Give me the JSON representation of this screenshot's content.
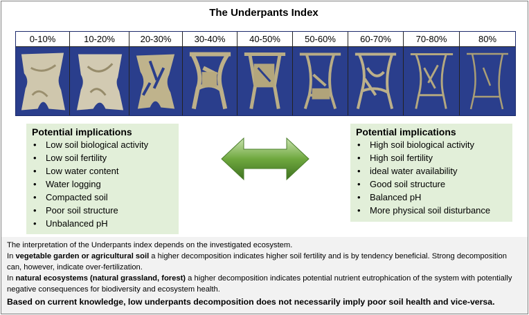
{
  "title": "The Underpants Index",
  "stages": [
    "0-10%",
    "10-20%",
    "20-30%",
    "30-40%",
    "40-50%",
    "50-60%",
    "60-70%",
    "70-80%",
    "80%"
  ],
  "left_box": {
    "heading": "Potential implications",
    "items": [
      "Low soil biological activity",
      "Low soil fertility",
      "Low water content",
      "Water logging",
      "Compacted soil",
      "Poor soil structure",
      "Unbalanced pH"
    ]
  },
  "right_box": {
    "heading": "Potential implications",
    "items": [
      "High soil biological activity",
      "High soil fertility",
      "ideal water availability",
      "Good soil structure",
      "Balanced pH",
      "More physical soil disturbance"
    ]
  },
  "info": {
    "line1": "The interpretation of the Underpants index depends on the investigated ecosystem.",
    "line2_pre": "In ",
    "line2_bold": "vegetable garden or agricultural soil",
    "line2_post": " a higher decomposition indicates higher soil fertility and is by tendency beneficial.  Strong decomposition can, however, indicate over-fertilization.",
    "line3_pre": "In ",
    "line3_bold": "natural ecosystems (natural grassland, forest)",
    "line3_post": " a higher decomposition indicates potential nutrient eutrophication of the system with potentially negative consequences for biodiversity and ecosystem health.",
    "conclusion": "Based on current knowledge, low underpants decomposition does not necessarily imply poor soil health and vice-versa."
  },
  "colors": {
    "photo_bg": "#2a3e8c",
    "box_bg": "#e2efd9",
    "arrow": "#5e9a2e",
    "info_bg": "#f2f2f2"
  }
}
